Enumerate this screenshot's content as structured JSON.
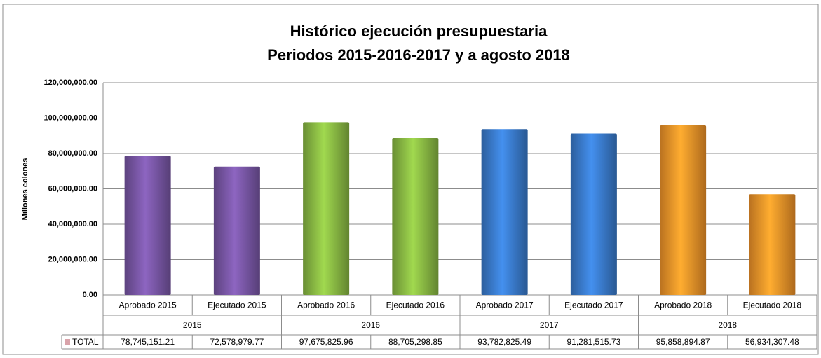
{
  "chart_data": {
    "type": "bar",
    "title": "Histórico ejecución presupuestaria",
    "subtitle": "Periodos 2015-2016-2017 y a agosto 2018",
    "y_label": "Millones colones",
    "categories": [
      "Aprobado 2015",
      "Ejecutado 2015",
      "Aprobado 2016",
      "Ejecutado 2016",
      "Aprobado 2017",
      "Ejecutado 2017",
      "Aprobado 2018",
      "Ejecutado 2018"
    ],
    "groups": [
      "2015",
      "2016",
      "2017",
      "2018"
    ],
    "series": [
      {
        "name": "TOTAL",
        "color": "#d9a3aa",
        "colors": [
          "#7b58a8",
          "#7b58a8",
          "#8cbd45",
          "#8cbd45",
          "#3b7dd0",
          "#3b7dd0",
          "#f7962a",
          "#f7962a"
        ],
        "values": [
          78745151.21,
          72578979.77,
          97675825.96,
          88705298.85,
          93782825.49,
          91281515.73,
          95858894.87,
          56934307.48
        ],
        "value_labels": [
          "78,745,151.21",
          "72,578,979.77",
          "97,675,825.96",
          "88,705,298.85",
          "93,782,825.49",
          "91,281,515.73",
          "95,858,894.87",
          "56,934,307.48"
        ]
      }
    ],
    "ylim": [
      0,
      120000000
    ],
    "yticks": [
      {
        "value": 0,
        "label": "0.00"
      },
      {
        "value": 20000000,
        "label": "20,000,000.00"
      },
      {
        "value": 40000000,
        "label": "40,000,000.00"
      },
      {
        "value": 60000000,
        "label": "60,000,000.00"
      },
      {
        "value": 80000000,
        "label": "80,000,000.00"
      },
      {
        "value": 100000000,
        "label": "100,000,000.00"
      },
      {
        "value": 120000000,
        "label": "120,000,000.00"
      }
    ],
    "grid": true
  }
}
